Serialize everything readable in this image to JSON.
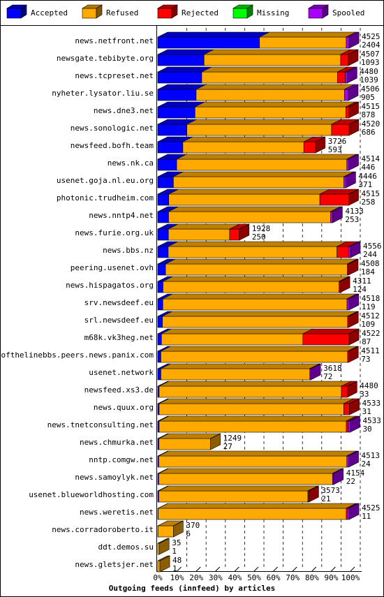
{
  "chart_data": {
    "type": "bar",
    "orientation": "horizontal",
    "stacked": true,
    "three_d": true,
    "xlabel": "Outgoing feeds (innfeed) by articles",
    "categories": [
      "news.netfront.net",
      "newsgate.tebibyte.org",
      "news.tcpreset.net",
      "nyheter.lysator.liu.se",
      "news.dne3.net",
      "news.sonologic.net",
      "newsfeed.bofh.team",
      "news.nk.ca",
      "usenet.goja.nl.eu.org",
      "photonic.trudheim.com",
      "news.nntp4.net",
      "news.furie.org.uk",
      "news.bbs.nz",
      "peering.usenet.ovh",
      "news.hispagatos.org",
      "srv.newsdeef.eu",
      "srl.newsdeef.eu",
      "m68k.vk3heg.net",
      "endofthelinebbs.peers.news.panix.com",
      "usenet.network",
      "newsfeed.xs3.de",
      "news.quux.org",
      "news.tnetconsulting.net",
      "news.chmurka.net",
      "nntp.comgw.net",
      "news.samoylyk.net",
      "usenet.blueworldhosting.com",
      "news.weretis.net",
      "news.corradoroberto.it",
      "ddt.demos.su",
      "news.gletsjer.net"
    ],
    "series": [
      {
        "name": "Accepted",
        "color": "#0000ff",
        "values": [
          52.8,
          24.0,
          22.8,
          19.9,
          19.3,
          15.1,
          13.0,
          9.8,
          8.1,
          5.7,
          5.6,
          5.5,
          5.4,
          4.0,
          2.7,
          2.6,
          2.4,
          1.9,
          1.6,
          1.6,
          0.7,
          0.7,
          0.7,
          0.6,
          0.5,
          0.5,
          0.5,
          0.2,
          0.1,
          0,
          0
        ]
      },
      {
        "name": "Refused",
        "color": "#ffaa00",
        "values": [
          45.0,
          70.9,
          70.5,
          77.0,
          78.3,
          75.1,
          62.8,
          88.3,
          88.5,
          78.4,
          84.1,
          31.8,
          87.6,
          94.4,
          91.4,
          95.6,
          96.1,
          73.4,
          96.9,
          77.3,
          94.6,
          95.8,
          97.1,
          26.8,
          97.6,
          90.2,
          77.4,
          97.6,
          8.0,
          0.8,
          1.1
        ]
      },
      {
        "name": "Rejected",
        "color": "#ff0000",
        "values": [
          0,
          4,
          4,
          0,
          1.5,
          9,
          6,
          0,
          0,
          15,
          0,
          5,
          6,
          0.5,
          0.5,
          0,
          0.5,
          24,
          0.5,
          0,
          3,
          3,
          1,
          0,
          0,
          0,
          0.5,
          0.5,
          0,
          0,
          0
        ]
      },
      {
        "name": "Missing",
        "color": "#00ff00",
        "values": [
          0,
          0,
          0,
          0,
          0,
          0,
          0,
          0,
          0,
          0,
          0,
          0,
          0,
          0,
          0,
          0,
          0,
          0,
          0,
          0,
          0,
          0,
          0,
          0,
          0,
          0,
          0,
          0,
          0,
          0,
          0
        ]
      },
      {
        "name": "Spooled",
        "color": "#aa00ff",
        "values": [
          1.5,
          0,
          1,
          2,
          0,
          0,
          0,
          1,
          1,
          0,
          1,
          0,
          1,
          0,
          0,
          1,
          0,
          0,
          0,
          0.5,
          0,
          0,
          1,
          0,
          1,
          0.5,
          0,
          1,
          0,
          0,
          0
        ]
      }
    ],
    "offered": [
      4525,
      4507,
      4480,
      4506,
      4515,
      4520,
      3726,
      4514,
      4446,
      4515,
      4133,
      1928,
      4556,
      4508,
      4311,
      4518,
      4512,
      4522,
      4511,
      3618,
      4480,
      4533,
      4533,
      1249,
      4513,
      4154,
      3573,
      4525,
      370,
      35,
      48
    ],
    "accepted_counts": [
      2404,
      1093,
      1039,
      905,
      878,
      686,
      593,
      446,
      371,
      258,
      253,
      250,
      244,
      184,
      124,
      119,
      109,
      87,
      73,
      72,
      33,
      31,
      30,
      27,
      24,
      22,
      21,
      11,
      6,
      1,
      1
    ],
    "xlim": [
      0,
      100
    ],
    "xticks": [
      {
        "value": 0,
        "label": "0%"
      },
      {
        "value": 10,
        "label": "10%"
      },
      {
        "value": 20,
        "label": "20%"
      },
      {
        "value": 30,
        "label": "30%"
      },
      {
        "value": 40,
        "label": "40%"
      },
      {
        "value": 50,
        "label": "50%"
      },
      {
        "value": 60,
        "label": "60%"
      },
      {
        "value": 70,
        "label": "70%"
      },
      {
        "value": 80,
        "label": "80%"
      },
      {
        "value": 90,
        "label": "90%"
      },
      {
        "value": 100,
        "label": "100%"
      }
    ],
    "grid": true,
    "legend": "top"
  }
}
